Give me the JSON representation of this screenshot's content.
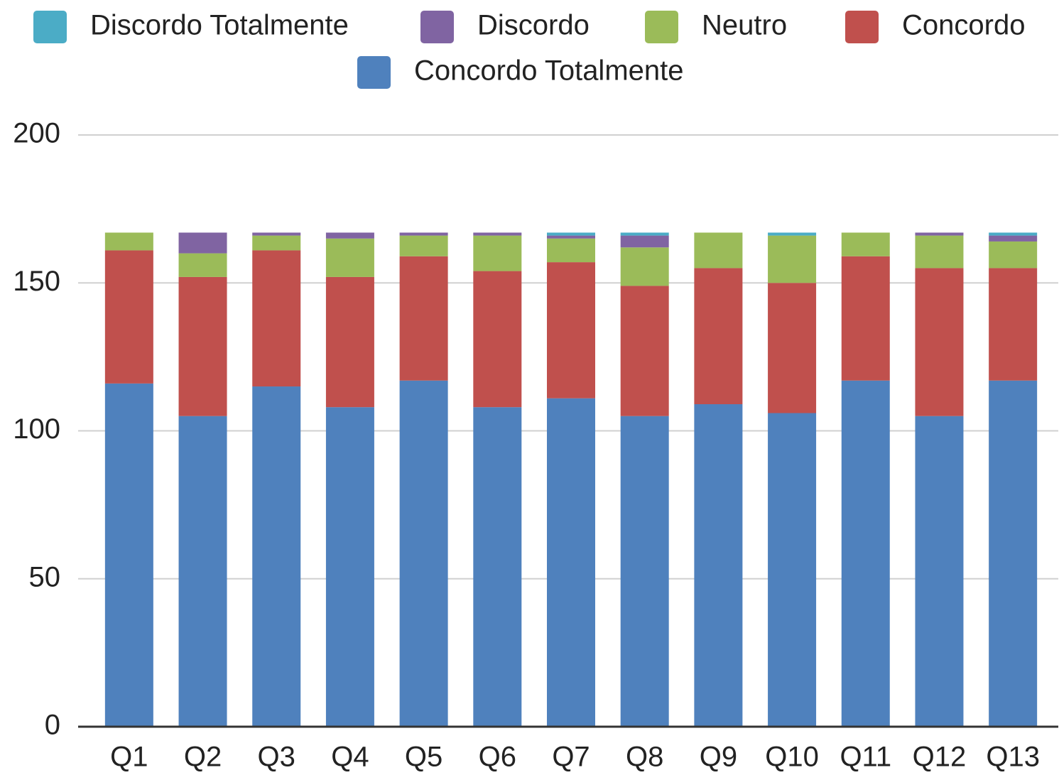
{
  "chart_data": {
    "type": "stacked_bar",
    "categories": [
      "Q1",
      "Q2",
      "Q3",
      "Q4",
      "Q5",
      "Q6",
      "Q7",
      "Q8",
      "Q9",
      "Q10",
      "Q11",
      "Q12",
      "Q13"
    ],
    "series": [
      {
        "name": "Discordo Totalmente",
        "color": "#4bacc6",
        "values": [
          0,
          0,
          0,
          0,
          0,
          0,
          1,
          1,
          0,
          1,
          0,
          0,
          1
        ]
      },
      {
        "name": "Discordo",
        "color": "#8064a2",
        "values": [
          0,
          7,
          1,
          2,
          1,
          1,
          1,
          4,
          0,
          0,
          0,
          1,
          2
        ]
      },
      {
        "name": "Neutro",
        "color": "#9bbb59",
        "values": [
          6,
          8,
          5,
          13,
          7,
          12,
          8,
          13,
          12,
          16,
          8,
          11,
          9
        ]
      },
      {
        "name": "Concordo",
        "color": "#c0504d",
        "values": [
          45,
          47,
          46,
          44,
          42,
          46,
          46,
          44,
          46,
          44,
          42,
          50,
          38
        ]
      },
      {
        "name": "Concordo Totalmente",
        "color": "#4f81bd",
        "values": [
          116,
          105,
          115,
          108,
          117,
          108,
          111,
          105,
          109,
          106,
          117,
          105,
          117
        ]
      }
    ],
    "ylim": [
      0,
      200
    ],
    "yticks": [
      0,
      50,
      100,
      150,
      200
    ],
    "grid": true,
    "legend": "top"
  }
}
